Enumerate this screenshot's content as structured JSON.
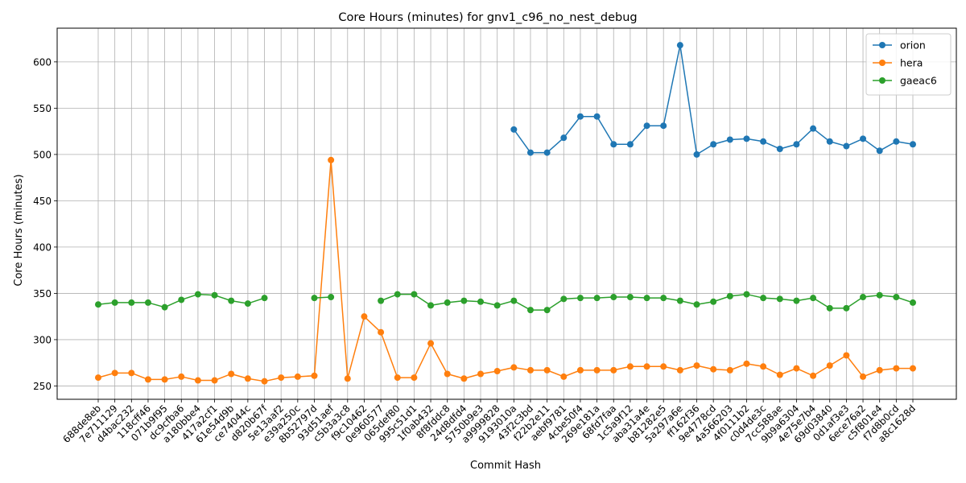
{
  "chart_data": {
    "type": "line",
    "title": "Core Hours (minutes) for gnv1_c96_no_nest_debug",
    "xlabel": "Commit Hash",
    "ylabel": "Core Hours (minutes)",
    "ylim": [
      235.6,
      636.4
    ],
    "yticks": [
      250,
      300,
      350,
      400,
      450,
      500,
      550,
      600
    ],
    "grid": true,
    "legend_position": "top-right",
    "categories": [
      "688de8eb",
      "7e711129",
      "d4bac232",
      "118cff46",
      "071b9f95",
      "dc9cfba6",
      "a180bbe4",
      "417a2cf1",
      "61e54d9b",
      "ce74044c",
      "d820b67f",
      "5e13aaf2",
      "e39a250c",
      "8b52797d",
      "93d51aef",
      "c5b3a3c8",
      "f9c10462",
      "0e960577",
      "065def80",
      "995c51d1",
      "1f0ab432",
      "8f8fddc8",
      "24d8dfd4",
      "5750b9e3",
      "a9999828",
      "9193010a",
      "43f2c3bd",
      "f22b2e11",
      "aebf9781",
      "4cbe50f4",
      "269e181a",
      "68fd7faa",
      "1c5a9f12",
      "aba31a4e",
      "b81282e5",
      "5a297a6e",
      "ff162f36",
      "9e4778cd",
      "4a566203",
      "4f0111b2",
      "c0d4de3c",
      "7cc588ae",
      "9b9a6304",
      "4e75e7b4",
      "69d03840",
      "0d1af3e3",
      "6ece76a2",
      "c5f801e4",
      "f7d8b0cd",
      "a8c1628d"
    ],
    "series": [
      {
        "name": "orion",
        "color": "#1f77b4",
        "values": [
          null,
          null,
          null,
          null,
          null,
          null,
          null,
          null,
          null,
          null,
          null,
          null,
          null,
          null,
          null,
          null,
          null,
          null,
          null,
          null,
          null,
          null,
          null,
          null,
          null,
          527,
          502,
          502,
          518,
          541,
          541,
          511,
          511,
          531,
          531,
          618,
          500,
          511,
          516,
          517,
          514,
          506,
          511,
          528,
          514,
          509,
          517,
          504,
          514,
          511
        ]
      },
      {
        "name": "hera",
        "color": "#ff7f0e",
        "values": [
          259,
          264,
          264,
          257,
          257,
          260,
          256,
          256,
          263,
          258,
          255,
          259,
          260,
          261,
          494,
          258,
          325,
          308,
          259,
          259,
          296,
          263,
          258,
          263,
          266,
          270,
          267,
          267,
          260,
          267,
          267,
          267,
          271,
          271,
          271,
          267,
          272,
          268,
          267,
          274,
          271,
          262,
          269,
          261,
          272,
          283,
          260,
          267,
          269,
          269
        ]
      },
      {
        "name": "gaeac6",
        "color": "#2ca02c",
        "values": [
          338,
          340,
          340,
          340,
          335,
          343,
          349,
          348,
          342,
          339,
          345,
          null,
          null,
          345,
          346,
          null,
          null,
          342,
          349,
          349,
          337,
          340,
          342,
          341,
          337,
          342,
          332,
          332,
          344,
          345,
          345,
          346,
          346,
          345,
          345,
          342,
          338,
          341,
          347,
          349,
          345,
          344,
          342,
          345,
          334,
          334,
          346,
          348,
          346,
          340
        ]
      }
    ]
  }
}
